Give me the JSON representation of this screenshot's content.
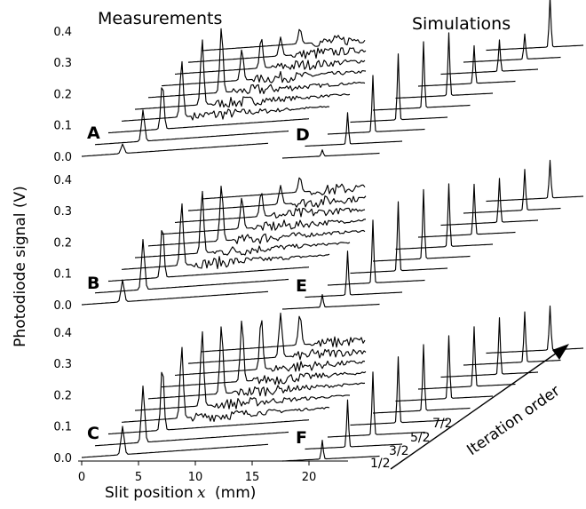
{
  "titles": {
    "left": "Measurements",
    "right": "Simulations"
  },
  "y_axis_label": "Photodiode signal (V)",
  "x_axis": {
    "label": "Slit position",
    "variable": "x",
    "unit": "(mm)"
  },
  "iteration_label": "Iteration order",
  "order_labels": [
    "1/2",
    "3/2",
    "5/2",
    "7/2"
  ],
  "chart_data": [
    {
      "type": "line",
      "panel": "A",
      "kind": "measured",
      "title": "Measurements",
      "ylabel": "Photodiode signal (V)",
      "yticks": [
        "0.0",
        "0.1",
        "0.2",
        "0.3",
        "0.4"
      ],
      "ylim": [
        0,
        0.44
      ],
      "waterfall": true,
      "series": [
        {
          "peak_x": 3.6,
          "peak_v": 0.03
        },
        {
          "peak_x": 5.4,
          "peak_v": 0.1
        },
        {
          "peak_x": 7.1,
          "peak_v": 0.15
        },
        {
          "peak_x": 8.8,
          "peak_v": 0.18
        },
        {
          "peak_x": 10.6,
          "peak_v": 0.21
        },
        {
          "peak_x": 12.3,
          "peak_v": 0.21
        },
        {
          "peak_x": 14.1,
          "peak_v": 0.1
        },
        {
          "peak_x": 15.8,
          "peak_v": 0.1
        },
        {
          "peak_x": 17.5,
          "peak_v": 0.06
        },
        {
          "peak_x": 19.2,
          "peak_v": 0.05
        }
      ]
    },
    {
      "type": "line",
      "panel": "B",
      "kind": "measured",
      "yticks": [
        "0.0",
        "0.1",
        "0.2",
        "0.3",
        "0.4"
      ],
      "ylim": [
        0,
        0.44
      ],
      "waterfall": true,
      "series": [
        {
          "peak_x": 3.6,
          "peak_v": 0.07
        },
        {
          "peak_x": 5.4,
          "peak_v": 0.16
        },
        {
          "peak_x": 7.1,
          "peak_v": 0.17
        },
        {
          "peak_x": 8.8,
          "peak_v": 0.2
        },
        {
          "peak_x": 10.6,
          "peak_v": 0.2
        },
        {
          "peak_x": 12.3,
          "peak_v": 0.18
        },
        {
          "peak_x": 14.1,
          "peak_v": 0.1
        },
        {
          "peak_x": 15.8,
          "peak_v": 0.08
        },
        {
          "peak_x": 17.5,
          "peak_v": 0.06
        },
        {
          "peak_x": 19.2,
          "peak_v": 0.05
        }
      ]
    },
    {
      "type": "line",
      "panel": "C",
      "kind": "measured",
      "xlabel": "Slit position x (mm)",
      "xticks": [
        "0",
        "5",
        "10",
        "15",
        "20"
      ],
      "xlim": [
        0,
        23.5
      ],
      "yticks": [
        "0.0",
        "0.1",
        "0.2",
        "0.3",
        "0.4"
      ],
      "ylim": [
        0,
        0.44
      ],
      "waterfall": true,
      "series": [
        {
          "peak_x": 3.6,
          "peak_v": 0.09
        },
        {
          "peak_x": 5.4,
          "peak_v": 0.18
        },
        {
          "peak_x": 7.1,
          "peak_v": 0.21
        },
        {
          "peak_x": 8.8,
          "peak_v": 0.23
        },
        {
          "peak_x": 10.6,
          "peak_v": 0.24
        },
        {
          "peak_x": 12.3,
          "peak_v": 0.22
        },
        {
          "peak_x": 14.1,
          "peak_v": 0.2
        },
        {
          "peak_x": 15.8,
          "peak_v": 0.17
        },
        {
          "peak_x": 17.5,
          "peak_v": 0.14
        },
        {
          "peak_x": 19.2,
          "peak_v": 0.1
        }
      ]
    },
    {
      "type": "line",
      "panel": "D",
      "kind": "simulated",
      "title": "Simulations",
      "waterfall": true,
      "series": [
        {
          "peak_x": 3.6,
          "peak_v": 0.02
        },
        {
          "peak_x": 5.4,
          "peak_v": 0.1
        },
        {
          "peak_x": 7.1,
          "peak_v": 0.18
        },
        {
          "peak_x": 8.8,
          "peak_v": 0.21
        },
        {
          "peak_x": 10.6,
          "peak_v": 0.21
        },
        {
          "peak_x": 12.3,
          "peak_v": 0.2
        },
        {
          "peak_x": 14.1,
          "peak_v": 0.12
        },
        {
          "peak_x": 15.8,
          "peak_v": 0.1
        },
        {
          "peak_x": 17.5,
          "peak_v": 0.08
        },
        {
          "peak_x": 19.2,
          "peak_v": 0.16
        }
      ]
    },
    {
      "type": "line",
      "panel": "E",
      "kind": "simulated",
      "waterfall": true,
      "series": [
        {
          "peak_x": 3.6,
          "peak_v": 0.04
        },
        {
          "peak_x": 5.4,
          "peak_v": 0.14
        },
        {
          "peak_x": 7.1,
          "peak_v": 0.2
        },
        {
          "peak_x": 8.8,
          "peak_v": 0.22
        },
        {
          "peak_x": 10.6,
          "peak_v": 0.22
        },
        {
          "peak_x": 12.3,
          "peak_v": 0.2
        },
        {
          "peak_x": 14.1,
          "peak_v": 0.16
        },
        {
          "peak_x": 15.8,
          "peak_v": 0.14
        },
        {
          "peak_x": 17.5,
          "peak_v": 0.13
        },
        {
          "peak_x": 19.2,
          "peak_v": 0.12
        }
      ]
    },
    {
      "type": "line",
      "panel": "F",
      "kind": "simulated",
      "waterfall": true,
      "series": [
        {
          "peak_x": 3.6,
          "peak_v": 0.06
        },
        {
          "peak_x": 5.4,
          "peak_v": 0.15
        },
        {
          "peak_x": 7.1,
          "peak_v": 0.2
        },
        {
          "peak_x": 8.8,
          "peak_v": 0.21
        },
        {
          "peak_x": 10.6,
          "peak_v": 0.21
        },
        {
          "peak_x": 12.3,
          "peak_v": 0.2
        },
        {
          "peak_x": 14.1,
          "peak_v": 0.19
        },
        {
          "peak_x": 15.8,
          "peak_v": 0.18
        },
        {
          "peak_x": 17.5,
          "peak_v": 0.16
        },
        {
          "peak_x": 19.2,
          "peak_v": 0.14
        }
      ]
    }
  ]
}
